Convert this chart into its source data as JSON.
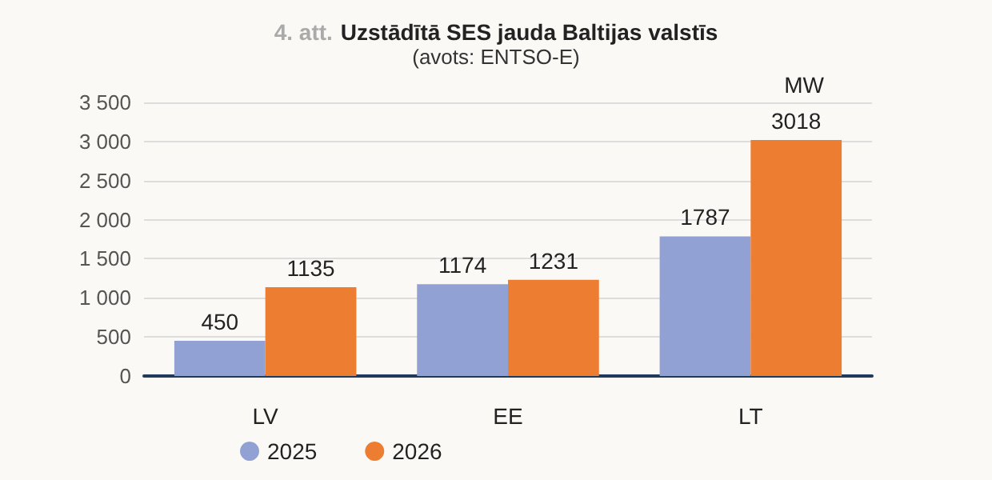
{
  "chart_data": {
    "type": "bar",
    "title": "4. att. Uzstādītā SES jauda Baltijas valstīs",
    "subtitle": "(avots: ENTSO-E)",
    "ylabel": "MW",
    "categories": [
      "LV",
      "EE",
      "LT"
    ],
    "series": [
      {
        "name": "2025",
        "color": "#92a1d3",
        "values": [
          450,
          1174,
          1787
        ]
      },
      {
        "name": "2026",
        "color": "#ed7d31",
        "values": [
          1135,
          1231,
          3018
        ]
      }
    ],
    "ylim": [
      0,
      3500
    ],
    "yticks": [
      0,
      500,
      {
        "value": 1000,
        "label": "1 000"
      },
      {
        "value": 1500,
        "label": "1 500"
      },
      {
        "value": 2000,
        "label": "2 000"
      },
      {
        "value": 2500,
        "label": "2 500"
      },
      {
        "value": 3000,
        "label": "3 000"
      },
      {
        "value": 3500,
        "label": "3 500"
      }
    ],
    "grid": "y",
    "legend": "bottom left",
    "marker": "circle",
    "data_labels": true
  }
}
